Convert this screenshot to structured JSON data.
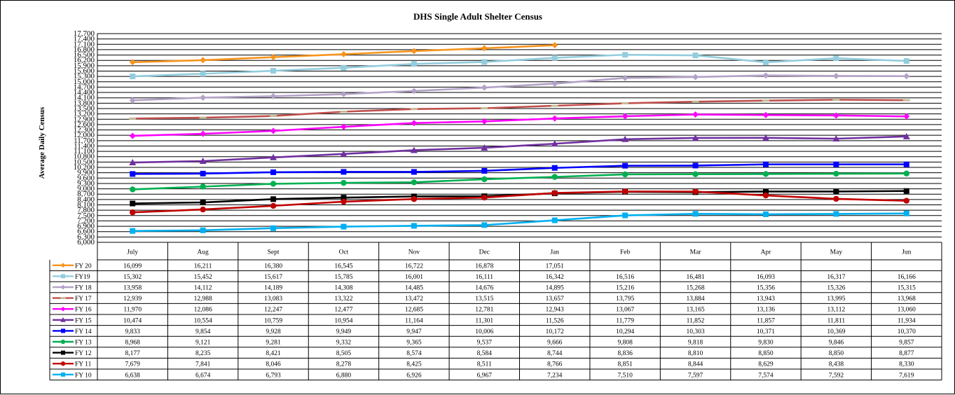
{
  "chart_data": {
    "type": "line",
    "title": "DHS Single Adult Shelter Census",
    "ylabel": "Average Daily Census",
    "xlabel": "",
    "ylim": [
      6000,
      17700
    ],
    "y_ticks": [
      "6,000",
      "6,300",
      "6,600",
      "6,900",
      "7,200",
      "7,500",
      "7,800",
      "8,100",
      "8,400",
      "8,700",
      "9,000",
      "9,300",
      "9,600",
      "9,900",
      "10,200",
      "10,500",
      "10,800",
      "11,100",
      "11,400",
      "11,700",
      "12,000",
      "12,300",
      "12,600",
      "12,900",
      "13,200",
      "13,500",
      "13,800",
      "14,100",
      "14,400",
      "14,700",
      "15,000",
      "15,300",
      "15,600",
      "15,900",
      "16,200",
      "16,500",
      "16,800",
      "17,100",
      "17,400",
      "17,700"
    ],
    "categories": [
      "July",
      "Aug",
      "Sept",
      "Oct",
      "Nov",
      "Dec",
      "Jan",
      "Feb",
      "Mar",
      "Apr",
      "May",
      "Jun"
    ],
    "grid": true,
    "legend": "table-left",
    "series": [
      {
        "name": "FY 20",
        "color": "#F7941D",
        "marker": "diamond",
        "values": [
          16099,
          16211,
          16380,
          16545,
          16722,
          16878,
          17051,
          null,
          null,
          null,
          null,
          null
        ]
      },
      {
        "name": "FY19",
        "color": "#93CDDD",
        "marker": "square",
        "values": [
          15302,
          15452,
          15617,
          15785,
          16001,
          16111,
          16342,
          16516,
          16481,
          16093,
          16317,
          16166
        ]
      },
      {
        "name": "FY 18",
        "color": "#B3A2C7",
        "marker": "diamond",
        "values": [
          13958,
          14112,
          14189,
          14308,
          14485,
          14676,
          14895,
          15216,
          15268,
          15356,
          15326,
          15315
        ]
      },
      {
        "name": "FY 17",
        "color": "#C0504D",
        "marker": "dash",
        "values": [
          12939,
          12988,
          13083,
          13322,
          13472,
          13515,
          13657,
          13795,
          13884,
          13943,
          13995,
          13968
        ]
      },
      {
        "name": "FY 16",
        "color": "#FF00FF",
        "marker": "diamond",
        "values": [
          11970,
          12086,
          12247,
          12477,
          12685,
          12781,
          12943,
          13067,
          13165,
          13136,
          13112,
          13060
        ]
      },
      {
        "name": "FY 15",
        "color": "#7030A0",
        "marker": "triangle",
        "values": [
          10474,
          10554,
          10759,
          10954,
          11164,
          11301,
          11526,
          11779,
          11852,
          11857,
          11811,
          11934
        ]
      },
      {
        "name": "FY 14",
        "color": "#0000FF",
        "marker": "square",
        "values": [
          9833,
          9854,
          9928,
          9949,
          9947,
          10006,
          10172,
          10294,
          10303,
          10371,
          10369,
          10370
        ]
      },
      {
        "name": "FY 13",
        "color": "#00B050",
        "marker": "circle",
        "values": [
          8968,
          9121,
          9281,
          9332,
          9365,
          9537,
          9666,
          9808,
          9818,
          9830,
          9846,
          9857
        ]
      },
      {
        "name": "FY 12",
        "color": "#000000",
        "marker": "square",
        "values": [
          8177,
          8235,
          8421,
          8505,
          8574,
          8584,
          8744,
          8836,
          8810,
          8850,
          8850,
          8877
        ]
      },
      {
        "name": "FY 11",
        "color": "#C00000",
        "marker": "circle",
        "values": [
          7679,
          7841,
          8046,
          8278,
          8425,
          8511,
          8766,
          8851,
          8844,
          8629,
          8438,
          8330
        ]
      },
      {
        "name": "FY 10",
        "color": "#00B0F0",
        "marker": "square",
        "values": [
          6638,
          6674,
          6793,
          6880,
          6926,
          6967,
          7234,
          7510,
          7597,
          7574,
          7592,
          7619
        ]
      }
    ]
  }
}
